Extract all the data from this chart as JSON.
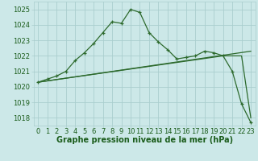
{
  "title": "Graphe pression niveau de la mer (hPa)",
  "xlabel_ticks": [
    "0",
    "1",
    "2",
    "3",
    "4",
    "5",
    "6",
    "7",
    "8",
    "9",
    "10",
    "11",
    "12",
    "13",
    "14",
    "15",
    "16",
    "17",
    "18",
    "19",
    "20",
    "21",
    "22",
    "23"
  ],
  "ylim": [
    1017.5,
    1025.5
  ],
  "yticks": [
    1018,
    1019,
    1020,
    1021,
    1022,
    1023,
    1024,
    1025
  ],
  "xlim": [
    -0.5,
    23.5
  ],
  "line1": {
    "x": [
      0,
      1,
      2,
      3,
      4,
      5,
      6,
      7,
      8,
      9,
      10,
      11,
      12,
      13,
      14,
      15,
      16,
      17,
      18,
      19,
      20,
      21,
      22,
      23
    ],
    "y": [
      1020.3,
      1020.5,
      1020.7,
      1021.0,
      1021.7,
      1022.2,
      1022.8,
      1023.5,
      1024.2,
      1024.1,
      1025.0,
      1024.8,
      1023.5,
      1022.9,
      1022.4,
      1021.8,
      1021.9,
      1022.0,
      1022.3,
      1022.2,
      1022.0,
      1021.0,
      1018.9,
      1017.7
    ]
  },
  "line2": {
    "x": [
      0,
      23
    ],
    "y": [
      1020.3,
      1022.3
    ]
  },
  "line3": {
    "x": [
      0,
      20,
      21,
      22,
      23
    ],
    "y": [
      1020.3,
      1022.0,
      1022.0,
      1022.0,
      1018.0
    ]
  },
  "bg_color": "#cce8e8",
  "grid_color": "#aacece",
  "line_color": "#2d6a2d",
  "label_color": "#1a5c1a",
  "title_color": "#1a5c1a",
  "title_fontsize": 7.0,
  "tick_fontsize": 6.0
}
